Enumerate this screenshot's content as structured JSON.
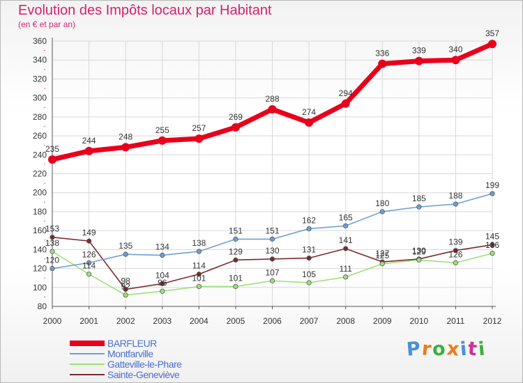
{
  "header": {
    "title": "Evolution des Impôts locaux par Habitant",
    "subtitle": "(en € et par an)"
  },
  "brand": {
    "text": "Proxiti",
    "letter_colors": [
      "#4a8fd8",
      "#f07a1a",
      "#3ab040",
      "#f07a1a",
      "#4a8fd8",
      "#d03090",
      "#3ab040"
    ]
  },
  "chart_data": {
    "type": "line",
    "title": "Evolution des Impôts locaux par Habitant",
    "subtitle": "(en € et par an)",
    "xlabel": "",
    "ylabel": "",
    "x": [
      "2000",
      "2001",
      "2002",
      "2003",
      "2004",
      "2005",
      "2006",
      "2007",
      "2008",
      "2009",
      "2010",
      "2011",
      "2012"
    ],
    "ylim": [
      80,
      360
    ],
    "yticks": [
      80,
      100,
      120,
      140,
      160,
      180,
      200,
      220,
      240,
      260,
      280,
      300,
      320,
      340,
      360
    ],
    "grid": true,
    "legend_position": "bottom-left",
    "series": [
      {
        "name": "BARFLEUR",
        "color": "#e8001c",
        "values": [
          235,
          244,
          248,
          255,
          257,
          269,
          288,
          274,
          294,
          336,
          339,
          340,
          357
        ]
      },
      {
        "name": "Montfarville",
        "color": "#6fa0cf",
        "values": [
          120,
          126,
          135,
          134,
          138,
          151,
          151,
          162,
          165,
          180,
          185,
          188,
          199
        ]
      },
      {
        "name": "Gatteville-le-Phare",
        "color": "#9ee07a",
        "values": [
          138,
          114,
          92,
          96,
          101,
          101,
          107,
          105,
          111,
          125,
          129,
          126,
          136
        ]
      },
      {
        "name": "Sainte-Geneviève",
        "color": "#7a2a30",
        "values": [
          153,
          149,
          98,
          104,
          114,
          129,
          130,
          131,
          141,
          127,
          130,
          139,
          145
        ]
      }
    ]
  }
}
